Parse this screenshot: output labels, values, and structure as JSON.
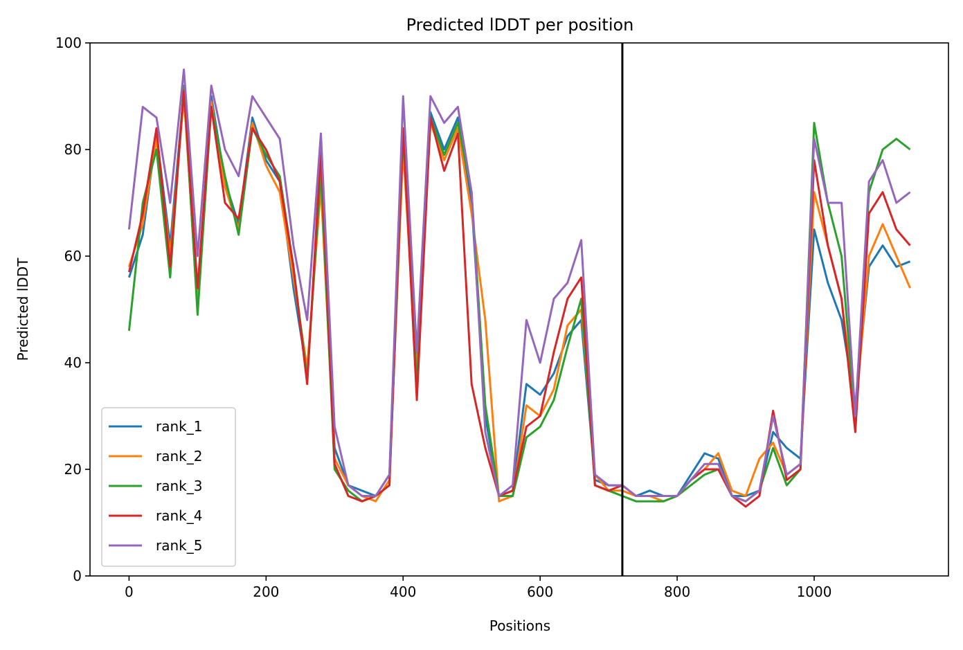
{
  "chart_data": {
    "type": "line",
    "title": "Predicted lDDT per position",
    "xlabel": "Positions",
    "ylabel": "Predicted lDDT",
    "xlim": [
      -57,
      1196
    ],
    "ylim": [
      0,
      100
    ],
    "x_ticks": [
      0,
      200,
      400,
      600,
      800,
      1000
    ],
    "y_ticks": [
      0,
      20,
      40,
      60,
      80,
      100
    ],
    "grid": false,
    "legend_position": "lower-left",
    "vertical_line_x": 720,
    "x": [
      0,
      20,
      40,
      60,
      80,
      100,
      120,
      140,
      160,
      180,
      200,
      220,
      240,
      260,
      280,
      300,
      320,
      340,
      360,
      380,
      400,
      420,
      440,
      460,
      480,
      500,
      520,
      540,
      560,
      580,
      600,
      620,
      640,
      660,
      680,
      700,
      720,
      740,
      760,
      780,
      800,
      820,
      840,
      860,
      880,
      900,
      920,
      940,
      960,
      980,
      1000,
      1020,
      1040,
      1060,
      1080,
      1100,
      1120,
      1140
    ],
    "series": [
      {
        "name": "rank_1",
        "color": "#1f77b4",
        "values": [
          56,
          64,
          83,
          62,
          91,
          50,
          90,
          74,
          66,
          86,
          78,
          74,
          54,
          38,
          75,
          24,
          17,
          16,
          15,
          19,
          82,
          40,
          87,
          80,
          86,
          70,
          30,
          15,
          16,
          36,
          34,
          38,
          45,
          48,
          18,
          17,
          17,
          15,
          16,
          15,
          15,
          19,
          23,
          22,
          15,
          15,
          16,
          27,
          24,
          22,
          65,
          55,
          48,
          32,
          58,
          62,
          58,
          59
        ]
      },
      {
        "name": "rank_2",
        "color": "#ff7f0e",
        "values": [
          58,
          66,
          82,
          60,
          90,
          51,
          89,
          73,
          65,
          85,
          77,
          72,
          56,
          39,
          73,
          22,
          17,
          15,
          14,
          18,
          80,
          38,
          85,
          78,
          84,
          68,
          48,
          14,
          15,
          32,
          30,
          35,
          47,
          50,
          19,
          16,
          16,
          15,
          15,
          14,
          15,
          18,
          20,
          23,
          16,
          15,
          22,
          25,
          19,
          21,
          72,
          62,
          52,
          30,
          60,
          66,
          60,
          54
        ]
      },
      {
        "name": "rank_3",
        "color": "#2ca02c",
        "values": [
          46,
          70,
          80,
          56,
          92,
          49,
          88,
          75,
          64,
          84,
          79,
          75,
          58,
          37,
          76,
          20,
          16,
          14,
          15,
          17,
          83,
          36,
          86,
          79,
          85,
          72,
          32,
          15,
          15,
          26,
          28,
          33,
          43,
          52,
          17,
          16,
          15,
          14,
          14,
          14,
          15,
          17,
          19,
          20,
          15,
          14,
          16,
          24,
          17,
          20,
          85,
          70,
          60,
          29,
          72,
          80,
          82,
          80
        ]
      },
      {
        "name": "rank_4",
        "color": "#d62728",
        "values": [
          57,
          68,
          84,
          58,
          91,
          54,
          88,
          70,
          67,
          84,
          80,
          74,
          58,
          36,
          80,
          21,
          15,
          14,
          15,
          17,
          84,
          33,
          86,
          76,
          83,
          36,
          24,
          15,
          16,
          28,
          30,
          42,
          52,
          56,
          17,
          16,
          17,
          15,
          15,
          15,
          15,
          18,
          20,
          20,
          15,
          13,
          15,
          31,
          18,
          20,
          78,
          62,
          52,
          27,
          68,
          72,
          65,
          62
        ]
      },
      {
        "name": "rank_5",
        "color": "#9467bd",
        "values": [
          65,
          88,
          86,
          70,
          95,
          60,
          92,
          80,
          75,
          90,
          86,
          82,
          62,
          48,
          83,
          28,
          17,
          15,
          15,
          19,
          90,
          42,
          90,
          85,
          88,
          72,
          27,
          15,
          17,
          48,
          40,
          52,
          55,
          63,
          19,
          17,
          17,
          15,
          15,
          15,
          15,
          18,
          21,
          21,
          15,
          14,
          16,
          30,
          19,
          21,
          82,
          70,
          70,
          30,
          74,
          78,
          70,
          72
        ]
      }
    ]
  }
}
